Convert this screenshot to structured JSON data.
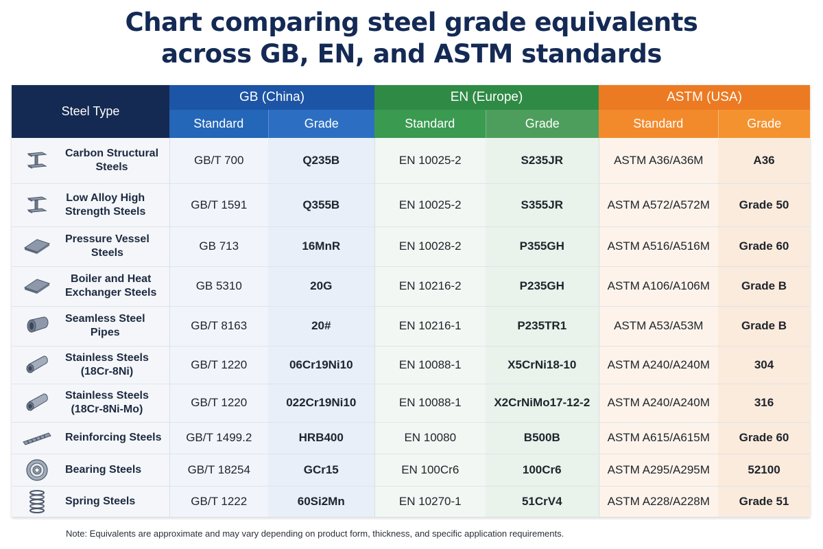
{
  "title": {
    "line1": "Chart comparing steel grade equivalents",
    "line2": "across GB, EN, and ASTM standards"
  },
  "header": {
    "steel_type": "Steel Type",
    "gb": "GB (China)",
    "en": "EN (Europe)",
    "astm": "ASTM (USA)",
    "standard": "Standard",
    "grade": "Grade"
  },
  "rows": [
    {
      "type": "Carbon Structural\nSteels",
      "icon": "i-beam-icon",
      "gb_std": "GB/T 700",
      "gb_grade": "Q235B",
      "en_std": "EN 10025-2",
      "en_grade": "S235JR",
      "astm_std": "ASTM A36/A36M",
      "astm_grade": "A36"
    },
    {
      "type": "Low Alloy High\nStrength Steels",
      "icon": "i-beam-icon",
      "gb_std": "GB/T 1591",
      "gb_grade": "Q355B",
      "en_std": "EN 10025-2",
      "en_grade": "S355JR",
      "astm_std": "ASTM A572/A572M",
      "astm_grade": "Grade 50"
    },
    {
      "type": "Pressure Vessel\nSteels",
      "icon": "steel-plate-icon",
      "gb_std": "GB 713",
      "gb_grade": "16MnR",
      "en_std": "EN 10028-2",
      "en_grade": "P355GH",
      "astm_std": "ASTM A516/A516M",
      "astm_grade": "Grade 60"
    },
    {
      "type": "Boiler and Heat\nExchanger Steels",
      "icon": "steel-plate-icon",
      "gb_std": "GB 5310",
      "gb_grade": "20G",
      "en_std": "EN 10216-2",
      "en_grade": "P235GH",
      "astm_std": "ASTM A106/A106M",
      "astm_grade": "Grade B"
    },
    {
      "type": "Seamless Steel\nPipes",
      "icon": "pipe-icon",
      "gb_std": "GB/T 8163",
      "gb_grade": "20#",
      "en_std": "EN 10216-1",
      "en_grade": "P235TR1",
      "astm_std": "ASTM A53/A53M",
      "astm_grade": "Grade B"
    },
    {
      "type": "Stainless Steels\n(18Cr-8Ni)",
      "icon": "tube-icon",
      "gb_std": "GB/T 1220",
      "gb_grade": "06Cr19Ni10",
      "en_std": "EN 10088-1",
      "en_grade": "X5CrNi18-10",
      "astm_std": "ASTM A240/A240M",
      "astm_grade": "304"
    },
    {
      "type": "Stainless Steels\n(18Cr-8Ni-Mo)",
      "icon": "tube-icon",
      "gb_std": "GB/T 1220",
      "gb_grade": "022Cr19Ni10",
      "en_std": "EN 10088-1",
      "en_grade": "X2CrNiMo17-12-2",
      "astm_std": "ASTM A240/A240M",
      "astm_grade": "316"
    },
    {
      "type": "Reinforcing Steels",
      "icon": "rebar-icon",
      "gb_std": "GB/T 1499.2",
      "gb_grade": "HRB400",
      "en_std": "EN 10080",
      "en_grade": "B500B",
      "astm_std": "ASTM A615/A615M",
      "astm_grade": "Grade 60"
    },
    {
      "type": "Bearing Steels",
      "icon": "bearing-icon",
      "gb_std": "GB/T 18254",
      "gb_grade": "GCr15",
      "en_std": "EN 100Cr6",
      "en_grade": "100Cr6",
      "astm_std": "ASTM A295/A295M",
      "astm_grade": "52100"
    },
    {
      "type": "Spring Steels",
      "icon": "spring-icon",
      "gb_std": "GB/T 1222",
      "gb_grade": "60Si2Mn",
      "en_std": "EN 10270-1",
      "en_grade": "51CrV4",
      "astm_std": "ASTM A228/A228M",
      "astm_grade": "Grade 51"
    }
  ],
  "note": "Note: Equivalents are approximate and may vary depending on product form, thickness, and specific application requirements.",
  "colors": {
    "title": "#142a55",
    "steel_type_header": "#142a52",
    "gb": "#1d55a6",
    "en": "#2f8a45",
    "astm": "#ec7a22"
  }
}
